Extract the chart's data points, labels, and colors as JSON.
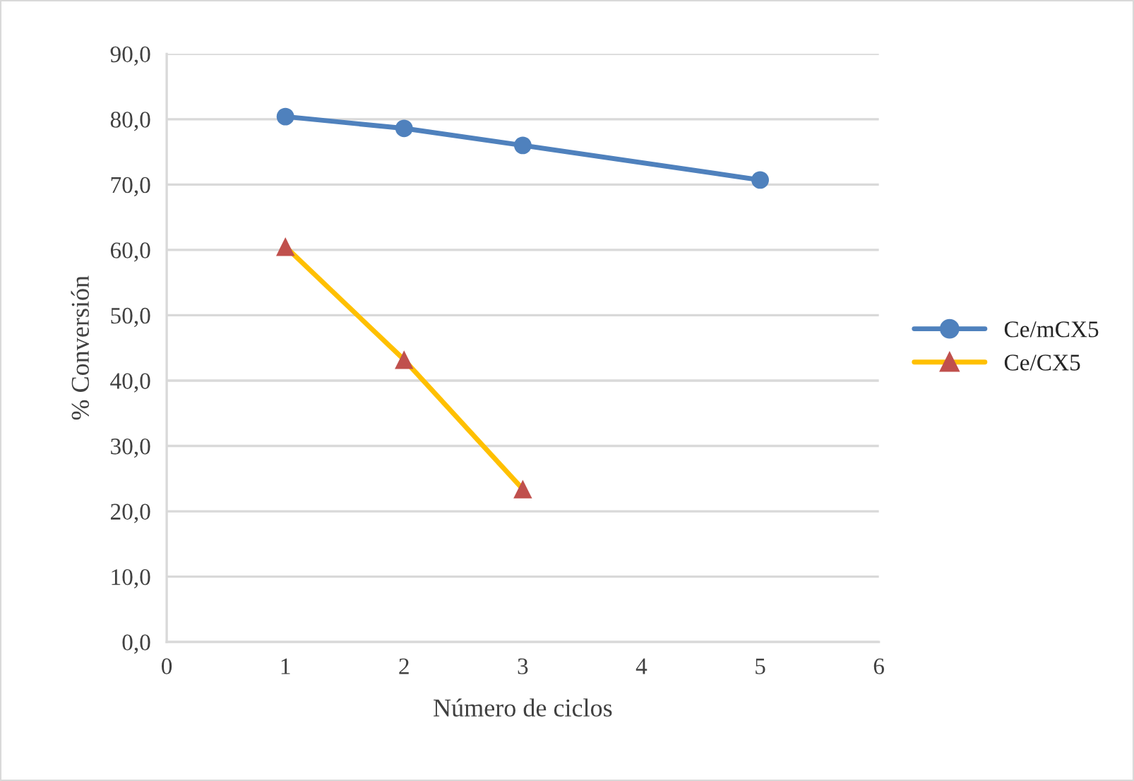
{
  "chart_data": {
    "type": "line",
    "xlabel": "Número de ciclos",
    "ylabel": "% Conversión",
    "xlim": [
      0,
      6
    ],
    "xticks": [
      0,
      1,
      2,
      3,
      4,
      5,
      6
    ],
    "ylim": [
      0,
      90
    ],
    "yticks": [
      {
        "value": 0,
        "label": "0,0"
      },
      {
        "value": 10,
        "label": "10,0"
      },
      {
        "value": 20,
        "label": "20,0"
      },
      {
        "value": 30,
        "label": "30,0"
      },
      {
        "value": 40,
        "label": "40,0"
      },
      {
        "value": 50,
        "label": "50,0"
      },
      {
        "value": 60,
        "label": "60,0"
      },
      {
        "value": 70,
        "label": "70,0"
      },
      {
        "value": 80,
        "label": "80,0"
      },
      {
        "value": 90,
        "label": "90,0"
      }
    ],
    "grid": "y",
    "legend": "right",
    "series": [
      {
        "name": "Ce/mCX5",
        "color": "#4f81bd",
        "marker": "circle",
        "x": [
          1,
          2,
          3,
          5
        ],
        "values": [
          80.4,
          78.6,
          76.0,
          70.7
        ]
      },
      {
        "name": "Ce/CX5",
        "color": "#ffc000",
        "colors": [
          "#c0504d",
          "#c0504d",
          "#c0504d"
        ],
        "marker": "triangle",
        "x": [
          1,
          2,
          3
        ],
        "values": [
          60.5,
          43.2,
          23.4
        ]
      }
    ]
  }
}
